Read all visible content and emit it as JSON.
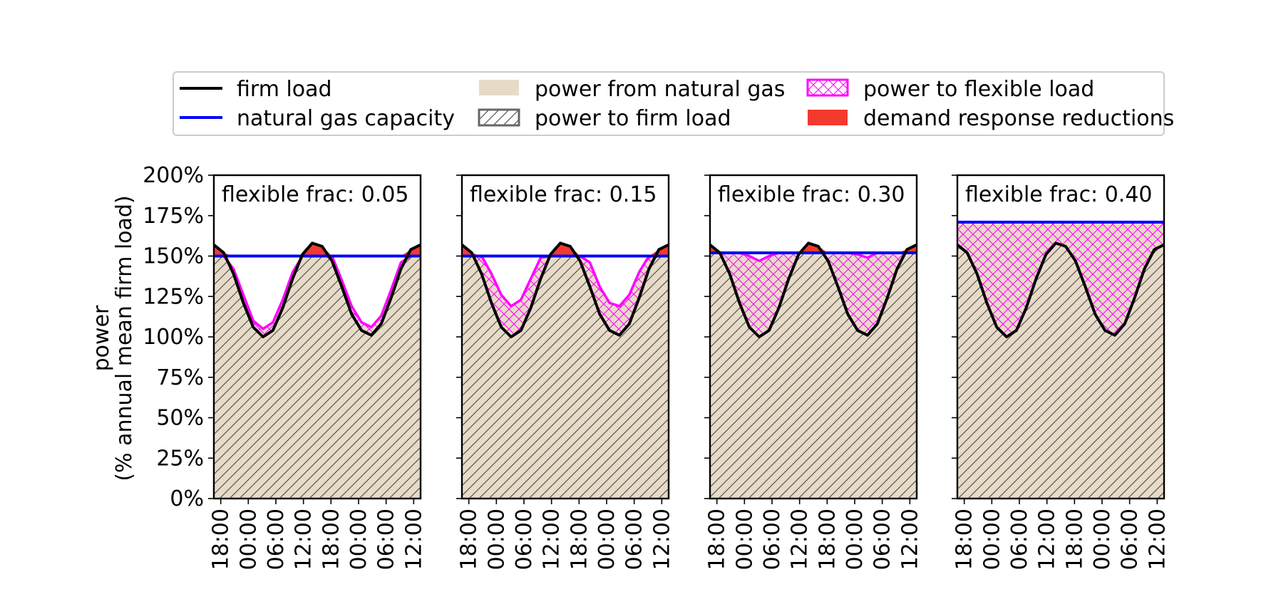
{
  "colors": {
    "firm_load": "#000000",
    "natural_gas_capacity": "#0000ff",
    "power_from_natural_gas": "#e7dbc8",
    "power_to_firm_load_hatch": "#555555",
    "power_to_flexible_load": "#ff00ff",
    "demand_response_reductions": "#f23a2f"
  },
  "legend": {
    "items": [
      {
        "key": "firm_load",
        "label": "firm load",
        "style": "line"
      },
      {
        "key": "natural_gas_capacity",
        "label": "natural gas capacity",
        "style": "line"
      },
      {
        "key": "power_from_natural_gas",
        "label": "power from natural gas",
        "style": "fill"
      },
      {
        "key": "power_to_firm_load",
        "label": "power to firm load",
        "style": "hatch-diagonal"
      },
      {
        "key": "power_to_flexible_load",
        "label": "power to flexible load",
        "style": "hatch-cross"
      },
      {
        "key": "demand_response_reductions",
        "label": "demand response reductions",
        "style": "fill"
      }
    ]
  },
  "chart_data": [
    {
      "type": "area",
      "title": "flexible frac: 0.05",
      "ylabel": "power\n(% annual mean firm load)",
      "ylim": [
        0,
        200
      ],
      "yticks": [
        "0%",
        "25%",
        "50%",
        "75%",
        "100%",
        "125%",
        "150%",
        "175%",
        "200%"
      ],
      "xticks": [
        "18:00",
        "00:00",
        "06:00",
        "12:00",
        "18:00",
        "00:00",
        "06:00",
        "12:00"
      ],
      "x_hours": [
        0,
        6,
        12,
        18,
        24,
        30,
        36,
        42
      ],
      "firm_load": [
        157,
        152,
        139,
        121,
        106,
        100,
        104,
        118,
        136,
        151,
        158,
        156,
        147,
        131,
        114,
        104,
        101,
        108,
        124,
        142,
        154,
        157
      ],
      "natural_gas_capacity": 150,
      "power_to_flexible_load": [
        150,
        150,
        142,
        126,
        110,
        105,
        109,
        123,
        140,
        150,
        150,
        150,
        150,
        135,
        119,
        109,
        106,
        113,
        129,
        146,
        150,
        150
      ]
    },
    {
      "type": "area",
      "title": "flexible frac: 0.15",
      "ylim": [
        0,
        200
      ],
      "yticks": [
        "0%",
        "25%",
        "50%",
        "75%",
        "100%",
        "125%",
        "150%",
        "175%",
        "200%"
      ],
      "xticks": [
        "18:00",
        "00:00",
        "06:00",
        "12:00",
        "18:00",
        "00:00",
        "06:00",
        "12:00"
      ],
      "x_hours": [
        0,
        6,
        12,
        18,
        24,
        30,
        36,
        42
      ],
      "firm_load": [
        157,
        152,
        139,
        121,
        106,
        100,
        104,
        118,
        136,
        151,
        158,
        156,
        147,
        131,
        114,
        104,
        101,
        108,
        124,
        142,
        154,
        157
      ],
      "natural_gas_capacity": 150,
      "power_to_flexible_load": [
        150,
        150,
        150,
        139,
        126,
        119,
        123,
        136,
        149,
        150,
        150,
        150,
        150,
        146,
        131,
        121,
        119,
        126,
        140,
        150,
        150,
        150
      ]
    },
    {
      "type": "area",
      "title": "flexible frac: 0.30",
      "ylim": [
        0,
        200
      ],
      "yticks": [
        "0%",
        "25%",
        "50%",
        "75%",
        "100%",
        "125%",
        "150%",
        "175%",
        "200%"
      ],
      "xticks": [
        "18:00",
        "00:00",
        "06:00",
        "12:00",
        "18:00",
        "00:00",
        "06:00",
        "12:00"
      ],
      "x_hours": [
        0,
        6,
        12,
        18,
        24,
        30,
        36,
        42
      ],
      "firm_load": [
        157,
        152,
        139,
        121,
        106,
        100,
        104,
        118,
        136,
        151,
        158,
        156,
        147,
        131,
        114,
        104,
        101,
        108,
        124,
        142,
        154,
        157
      ],
      "natural_gas_capacity": 152,
      "power_to_flexible_load": [
        152,
        152,
        152,
        152,
        150,
        147,
        150,
        152,
        152,
        152,
        152,
        152,
        152,
        152,
        152,
        151,
        149,
        152,
        152,
        152,
        152,
        152
      ]
    },
    {
      "type": "area",
      "title": "flexible frac: 0.40",
      "ylim": [
        0,
        200
      ],
      "yticks": [
        "0%",
        "25%",
        "50%",
        "75%",
        "100%",
        "125%",
        "150%",
        "175%",
        "200%"
      ],
      "xticks": [
        "18:00",
        "00:00",
        "06:00",
        "12:00",
        "18:00",
        "00:00",
        "06:00",
        "12:00"
      ],
      "x_hours": [
        0,
        6,
        12,
        18,
        24,
        30,
        36,
        42
      ],
      "firm_load": [
        157,
        152,
        139,
        121,
        106,
        100,
        104,
        118,
        136,
        151,
        158,
        156,
        147,
        131,
        114,
        104,
        101,
        108,
        124,
        142,
        154,
        157
      ],
      "natural_gas_capacity": 171,
      "power_to_flexible_load": [
        171,
        171,
        171,
        171,
        171,
        171,
        171,
        171,
        171,
        171,
        171,
        171,
        171,
        171,
        171,
        171,
        171,
        171,
        171,
        171,
        171,
        171
      ]
    }
  ]
}
